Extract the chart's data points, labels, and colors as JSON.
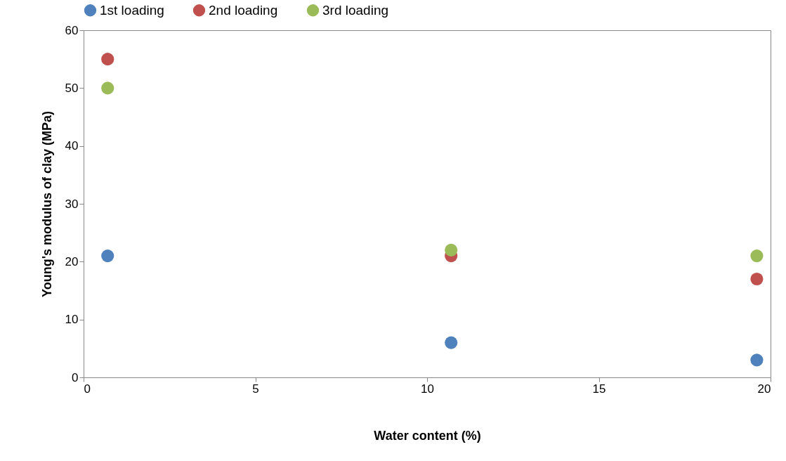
{
  "chart_data": {
    "type": "scatter",
    "xlabel": "Water content (%)",
    "ylabel": "Young's modulus of clay (MPa)",
    "x": [
      0.7,
      10.7,
      19.6
    ],
    "series": [
      {
        "name": "1st loading",
        "color": "#4f81bd",
        "values": [
          21,
          6,
          3
        ]
      },
      {
        "name": "2nd loading",
        "color": "#c0504d",
        "values": [
          55,
          21,
          17
        ]
      },
      {
        "name": "3rd loading",
        "color": "#9bbb59",
        "values": [
          50,
          22,
          21
        ]
      }
    ],
    "xlim": [
      0,
      20
    ],
    "xticks": [
      0,
      5,
      10,
      15,
      20
    ],
    "ylim": [
      0,
      60
    ],
    "yticks": [
      0,
      10,
      20,
      30,
      40,
      50,
      60
    ],
    "grid": false,
    "legend": "top",
    "marker": "circle"
  }
}
